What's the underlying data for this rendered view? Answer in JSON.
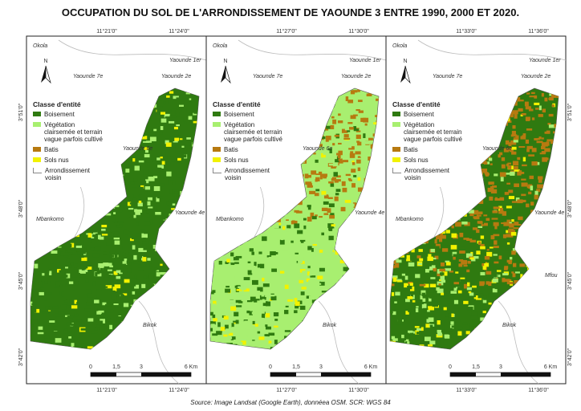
{
  "title": "OCCUPATION DU SOL DE L'ARRONDISSEMENT DE YAOUNDE 3 ENTRE 1990, 2000 ET 2020.",
  "panels": [
    {
      "top_labels": [
        "11°21'0\"",
        "11°24'0\""
      ],
      "bottom_labels": [
        "11°21'0\"",
        "11°24'0\""
      ],
      "places": [
        "Okola",
        "Yaounde 1er",
        "Yaounde 2e",
        "Yaounde 7e",
        "Yaounde 6e",
        "Yaounde 4e",
        "Mbankomo",
        "Bikok"
      ]
    },
    {
      "top_labels": [
        "11°27'0\"",
        "11°30'0\""
      ],
      "bottom_labels": [
        "11°27'0\"",
        "11°30'0\""
      ],
      "places": [
        "Okola",
        "Yaounde 1er",
        "Yaounde 2e",
        "Yaounde 7e",
        "Yaounde 6e",
        "Yaounde 4e",
        "Mbankomo",
        "Bikok"
      ]
    },
    {
      "top_labels": [
        "11°33'0\"",
        "11°36'0\""
      ],
      "bottom_labels": [
        "11°33'0\"",
        "11°36'0\""
      ],
      "places": [
        "Okola",
        "Yaounde 1er",
        "Yaounde 2e",
        "Yaounde 7e",
        "Yaounde 6e",
        "Yaounde 4e",
        "Mbankomo",
        "Bikok",
        "Mfou"
      ]
    }
  ],
  "lat_labels": [
    "3°51'0\"",
    "3°48'0\"",
    "3°45'0\"",
    "3°42'0\""
  ],
  "legend": {
    "title": "Classe d'entité",
    "items": [
      "Boisement",
      "Végétation clairsemée et terrain vague parfois cultivé",
      "Batis",
      "Sols nus",
      "Arrondissement voisin"
    ]
  },
  "north": "N",
  "scale": [
    "0",
    "1,5",
    "3",
    "6 Km"
  ],
  "source": "Source: Image Landsat (Google Earth), donnéea OSM. SCR: WGS 84"
}
